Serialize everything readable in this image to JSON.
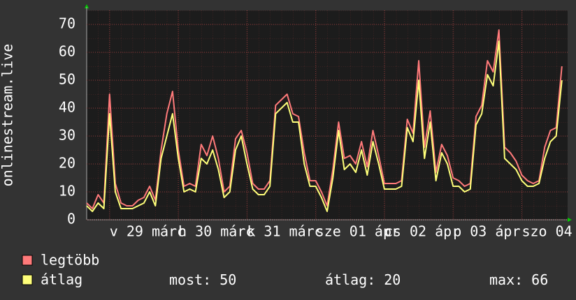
{
  "chart_data": {
    "type": "line",
    "y_label": "onlinestream.live",
    "ylim": [
      0,
      75
    ],
    "yticks": [
      0,
      10,
      20,
      30,
      40,
      50,
      60,
      70
    ],
    "grid": true,
    "categories": [
      null,
      null,
      null,
      null,
      "v 29 márc",
      null,
      null,
      null,
      null,
      null,
      null,
      null,
      null,
      null,
      null,
      null,
      "h 30 márc",
      null,
      null,
      null,
      null,
      null,
      null,
      null,
      null,
      null,
      null,
      null,
      "k 31 márc",
      null,
      null,
      null,
      null,
      null,
      null,
      null,
      null,
      null,
      null,
      null,
      "sze 01 ápr",
      null,
      null,
      null,
      null,
      null,
      null,
      null,
      null,
      null,
      null,
      null,
      "cs 02 ápr",
      null,
      null,
      null,
      null,
      null,
      null,
      null,
      null,
      null,
      null,
      null,
      "p 03 ápr",
      null,
      null,
      null,
      null,
      null,
      null,
      null,
      null,
      null,
      null,
      null,
      "szo 04",
      null,
      null,
      null,
      null,
      null,
      null,
      null
    ],
    "series": [
      {
        "name": "legtöbb",
        "color": "#ff7a7a",
        "values": [
          6,
          4,
          9,
          6,
          45,
          13,
          6,
          5,
          5,
          7,
          8,
          12,
          7,
          25,
          38,
          46,
          25,
          12,
          13,
          12,
          27,
          23,
          30,
          22,
          10,
          12,
          29,
          32,
          24,
          13,
          11,
          11,
          14,
          41,
          43,
          45,
          38,
          37,
          24,
          14,
          14,
          10,
          5,
          18,
          35,
          22,
          23,
          20,
          28,
          19,
          32,
          23,
          13,
          13,
          13,
          14,
          36,
          31,
          57,
          26,
          39,
          17,
          27,
          23,
          15,
          14,
          12,
          13,
          37,
          41,
          57,
          53,
          68,
          26,
          24,
          21,
          16,
          14,
          13,
          14,
          26,
          32,
          33,
          55
        ]
      },
      {
        "name": "átlag",
        "color": "#ffff7a",
        "values": [
          5,
          3,
          6,
          4,
          38,
          10,
          4,
          4,
          4,
          5,
          6,
          10,
          5,
          22,
          30,
          38,
          22,
          10,
          11,
          10,
          22,
          20,
          25,
          18,
          8,
          10,
          25,
          30,
          20,
          11,
          9,
          9,
          12,
          38,
          40,
          42,
          35,
          35,
          20,
          12,
          12,
          8,
          3,
          15,
          32,
          18,
          20,
          17,
          25,
          16,
          28,
          20,
          11,
          11,
          11,
          12,
          33,
          28,
          50,
          22,
          35,
          14,
          24,
          20,
          12,
          12,
          10,
          11,
          34,
          38,
          52,
          48,
          64,
          22,
          20,
          18,
          14,
          12,
          12,
          13,
          22,
          28,
          30,
          50
        ]
      }
    ],
    "stats": [
      {
        "label": "most:",
        "value": 50
      },
      {
        "label": "átlag:",
        "value": 20
      },
      {
        "label": "max:",
        "value": 66
      }
    ]
  }
}
